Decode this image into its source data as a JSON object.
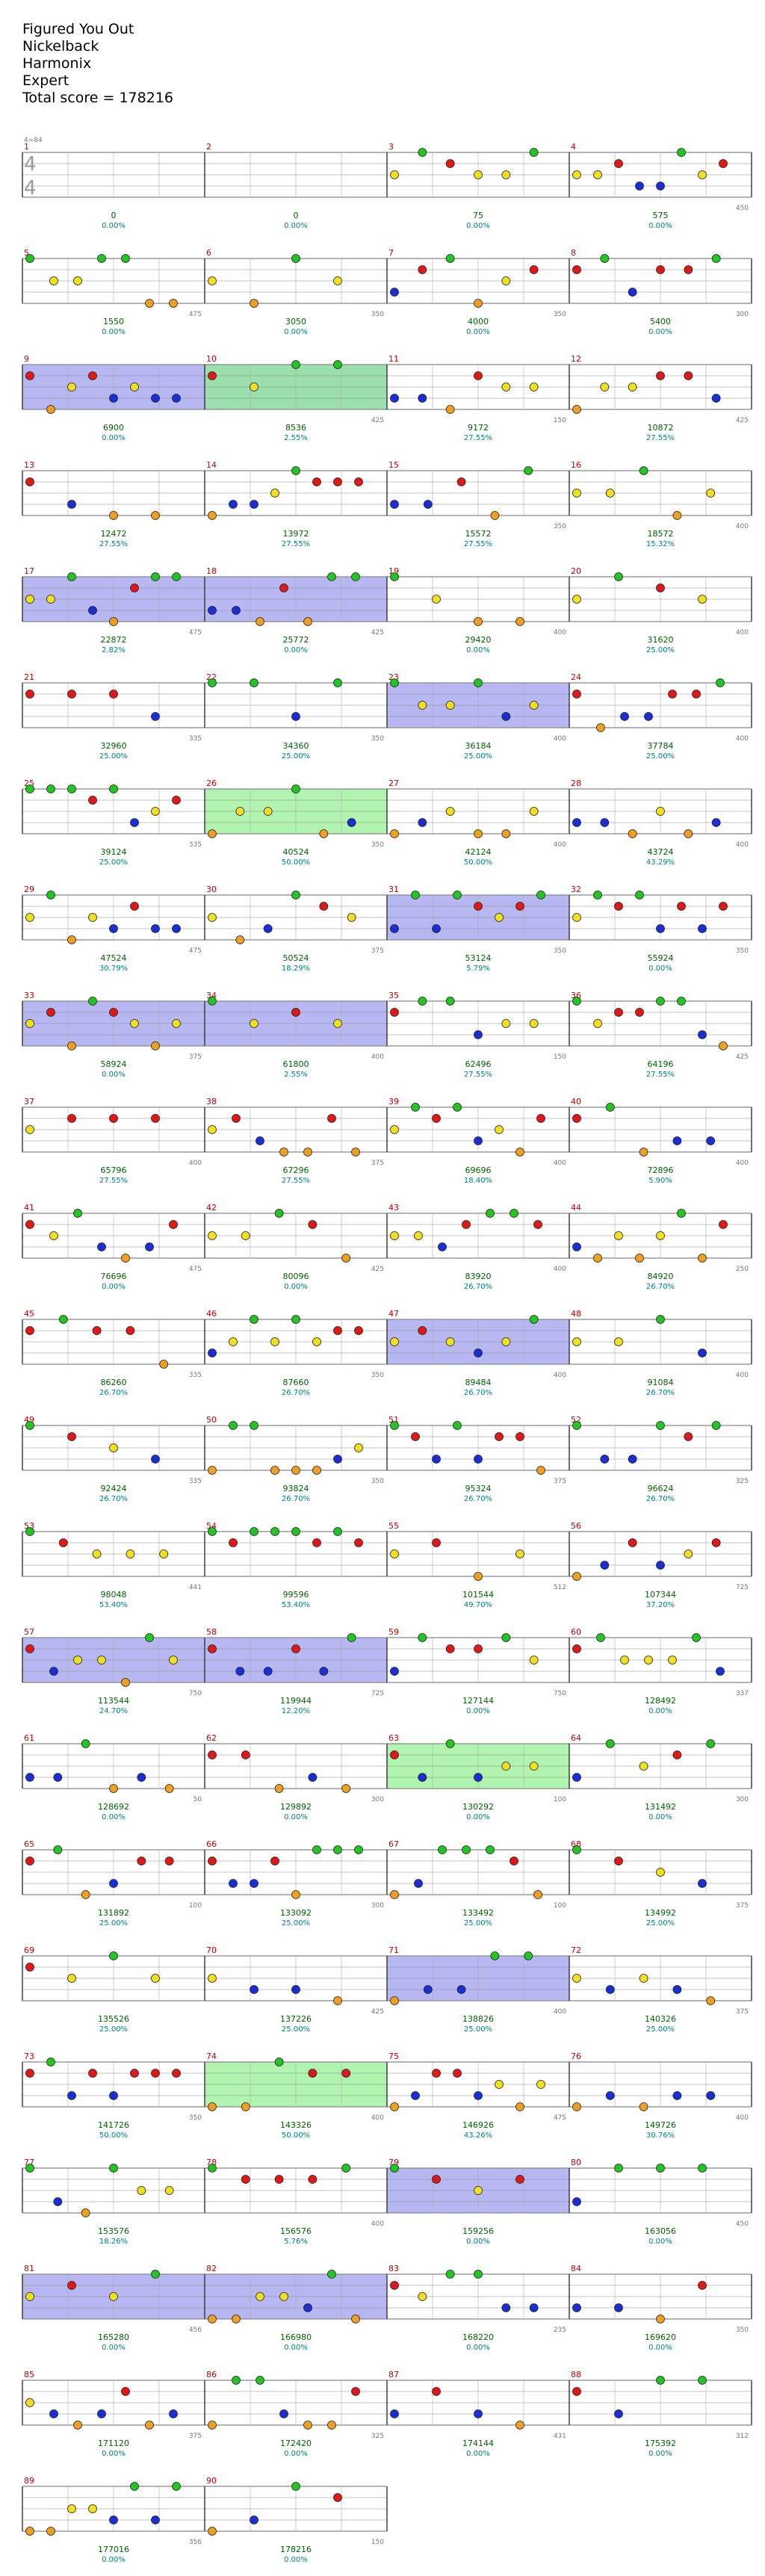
{
  "song": {
    "title": "Figured You Out",
    "artist": "Nickelback",
    "charter": "Harmonix",
    "difficulty": "Expert",
    "total_score_label": "Total score = ",
    "total_score": "178216"
  },
  "colors": {
    "green": "#22c522",
    "red": "#e01818",
    "yellow": "#f0e020",
    "blue": "#1a2ed6",
    "orange": "#f0a020",
    "starpower_overdrive": "#7b7be8",
    "starpower_phrase": "#8ff08f",
    "measure_number": "#c00000",
    "score": "#006000",
    "percent": "#008080",
    "grid": "#aaaaaa"
  },
  "time_signature": {
    "numerator": "4",
    "denominator": "4",
    "label": "4=84"
  },
  "rows": [
    {
      "first_measure": 1,
      "scores": [
        "0",
        "0",
        "75",
        "575"
      ],
      "percents": [
        "0.00%",
        "0.00%",
        "0.00%",
        "0.00%"
      ],
      "small": [
        "",
        "",
        "",
        "450"
      ]
    },
    {
      "first_measure": 5,
      "scores": [
        "1550",
        "3050",
        "4000",
        "5400"
      ],
      "percents": [
        "0.00%",
        "0.00%",
        "0.00%",
        "0.00%"
      ],
      "small": [
        "475",
        "350",
        "350",
        "300"
      ]
    },
    {
      "first_measure": 9,
      "scores": [
        "6900",
        "8536",
        "9172",
        "10872"
      ],
      "percents": [
        "0.00%",
        "2.55%",
        "27.55%",
        "27.55%"
      ],
      "small": [
        "",
        "425",
        "150",
        "425"
      ]
    },
    {
      "first_measure": 13,
      "scores": [
        "12472",
        "13972",
        "15572",
        "18572"
      ],
      "percents": [
        "27.55%",
        "27.55%",
        "27.55%",
        "15.32%"
      ],
      "small": [
        "",
        "",
        "350",
        "400"
      ]
    },
    {
      "first_measure": 17,
      "scores": [
        "22872",
        "25772",
        "29420",
        "31620"
      ],
      "percents": [
        "2.82%",
        "0.00%",
        "0.00%",
        "25.00%"
      ],
      "small": [
        "475",
        "425",
        "400",
        "400"
      ]
    },
    {
      "first_measure": 21,
      "scores": [
        "32960",
        "34360",
        "36184",
        "37784"
      ],
      "percents": [
        "25.00%",
        "25.00%",
        "25.00%",
        "25.00%"
      ],
      "small": [
        "335",
        "350",
        "400",
        "400"
      ]
    },
    {
      "first_measure": 25,
      "scores": [
        "39124",
        "40524",
        "42124",
        "43724"
      ],
      "percents": [
        "25.00%",
        "50.00%",
        "50.00%",
        "43.29%"
      ],
      "small": [
        "335",
        "350",
        "400",
        "400"
      ]
    },
    {
      "first_measure": 29,
      "scores": [
        "47524",
        "50524",
        "53124",
        "55924"
      ],
      "percents": [
        "30.79%",
        "18.29%",
        "5.79%",
        "0.00%"
      ],
      "small": [
        "475",
        "375",
        "350",
        "350"
      ]
    },
    {
      "first_measure": 33,
      "scores": [
        "58924",
        "61800",
        "62496",
        "64196"
      ],
      "percents": [
        "0.00%",
        "2.55%",
        "27.55%",
        "27.55%"
      ],
      "small": [
        "375",
        "400",
        "150",
        "425"
      ]
    },
    {
      "first_measure": 37,
      "scores": [
        "65796",
        "67296",
        "69696",
        "72896"
      ],
      "percents": [
        "27.55%",
        "27.55%",
        "18.40%",
        "5.90%"
      ],
      "small": [
        "400",
        "375",
        "400",
        "400"
      ]
    },
    {
      "first_measure": 41,
      "scores": [
        "76696",
        "80096",
        "83920",
        "84920"
      ],
      "percents": [
        "0.00%",
        "0.00%",
        "26.70%",
        "26.70%"
      ],
      "small": [
        "475",
        "425",
        "400",
        "250"
      ]
    },
    {
      "first_measure": 45,
      "scores": [
        "86260",
        "87660",
        "89484",
        "91084"
      ],
      "percents": [
        "26.70%",
        "26.70%",
        "26.70%",
        "26.70%"
      ],
      "small": [
        "335",
        "350",
        "400",
        "400"
      ]
    },
    {
      "first_measure": 49,
      "scores": [
        "92424",
        "93824",
        "95324",
        "96624"
      ],
      "percents": [
        "26.70%",
        "26.70%",
        "26.70%",
        "26.70%"
      ],
      "small": [
        "335",
        "350",
        "375",
        "325"
      ]
    },
    {
      "first_measure": 53,
      "scores": [
        "98048",
        "99596",
        "101544",
        "107344"
      ],
      "percents": [
        "53.40%",
        "53.40%",
        "49.70%",
        "37.20%"
      ],
      "small": [
        "441",
        "",
        "512",
        "725"
      ]
    },
    {
      "first_measure": 57,
      "scores": [
        "113544",
        "119944",
        "127144",
        "128492"
      ],
      "percents": [
        "24.70%",
        "12.20%",
        "0.00%",
        "0.00%"
      ],
      "small": [
        "750",
        "725",
        "750",
        "337"
      ]
    },
    {
      "first_measure": 61,
      "scores": [
        "128692",
        "129892",
        "130292",
        "131492"
      ],
      "percents": [
        "0.00%",
        "0.00%",
        "0.00%",
        "0.00%"
      ],
      "small": [
        "50",
        "300",
        "100",
        "300"
      ]
    },
    {
      "first_measure": 65,
      "scores": [
        "131892",
        "133092",
        "133492",
        "134992"
      ],
      "percents": [
        "25.00%",
        "25.00%",
        "25.00%",
        "25.00%"
      ],
      "small": [
        "100",
        "300",
        "100",
        "375"
      ]
    },
    {
      "first_measure": 69,
      "scores": [
        "135526",
        "137226",
        "138826",
        "140326"
      ],
      "percents": [
        "25.00%",
        "25.00%",
        "25.00%",
        "25.00%"
      ],
      "small": [
        "",
        "425",
        "400",
        "375"
      ]
    },
    {
      "first_measure": 73,
      "scores": [
        "141726",
        "143326",
        "146926",
        "149726"
      ],
      "percents": [
        "50.00%",
        "50.00%",
        "43.26%",
        "30.76%"
      ],
      "small": [
        "350",
        "400",
        "475",
        "400"
      ]
    },
    {
      "first_measure": 77,
      "scores": [
        "153576",
        "156576",
        "159256",
        "163056"
      ],
      "percents": [
        "18.26%",
        "5.76%",
        "0.00%",
        "0.00%"
      ],
      "small": [
        "",
        "400",
        "",
        "450"
      ]
    },
    {
      "first_measure": 81,
      "scores": [
        "165280",
        "166980",
        "168220",
        "169620"
      ],
      "percents": [
        "0.00%",
        "0.00%",
        "0.00%",
        "0.00%"
      ],
      "small": [
        "456",
        "",
        "235",
        "350"
      ]
    },
    {
      "first_measure": 85,
      "scores": [
        "171120",
        "172420",
        "174144",
        "175392"
      ],
      "percents": [
        "0.00%",
        "0.00%",
        "0.00%",
        "0.00%"
      ],
      "small": [
        "375",
        "325",
        "431",
        "312"
      ]
    },
    {
      "first_measure": 89,
      "scores": [
        "177016",
        "178216"
      ],
      "percents": [
        "0.00%",
        "0.00%"
      ],
      "small": [
        "356",
        "150"
      ]
    }
  ]
}
